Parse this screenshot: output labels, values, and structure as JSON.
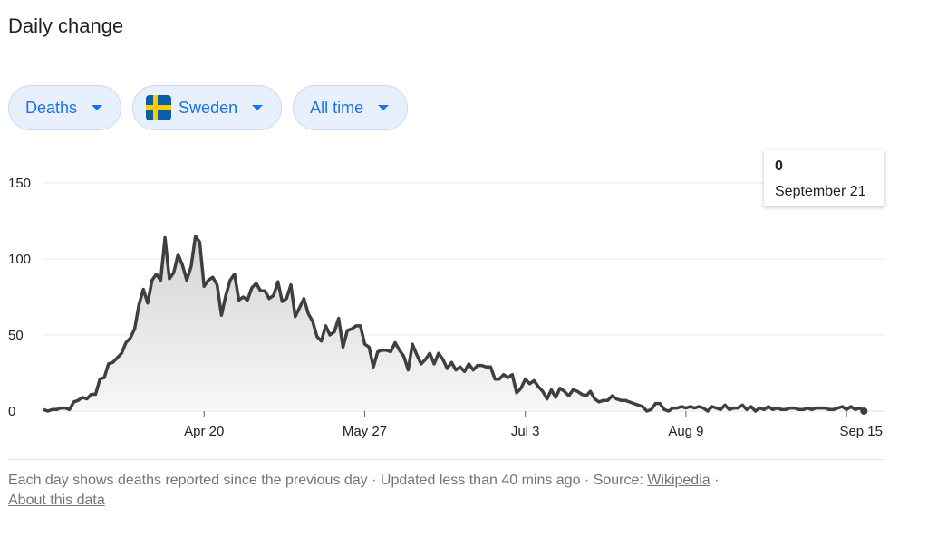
{
  "header": {
    "title": "Daily change"
  },
  "filters": [
    {
      "label": "Deaths",
      "icon": "caret-down-icon"
    },
    {
      "label": "Sweden",
      "icon": "sweden-flag-icon"
    },
    {
      "label": "All time",
      "icon": "caret-down-icon"
    }
  ],
  "colors": {
    "chip_text": "#1a73e8",
    "chip_bg": "#e8f0fe",
    "line": "#3c4043",
    "area_top": "#d9d9d9"
  },
  "tooltip": {
    "value": "0",
    "date": "September 21"
  },
  "footer": {
    "text": "Each day shows deaths reported since the previous day · Updated less than 40 mins ago  ·  Source: ",
    "source_link": "Wikipedia",
    "separator": " · ",
    "about_link": "About this data"
  },
  "chart_data": {
    "type": "area",
    "title": "",
    "xlabel": "",
    "ylabel": "",
    "ylim": [
      0,
      150
    ],
    "yticks": [
      0,
      50,
      100,
      150
    ],
    "xtick_labels": [
      "Apr 20",
      "May 27",
      "Jul 3",
      "Aug 9",
      "Sep 15"
    ],
    "xtick_day_index": [
      37,
      74,
      111,
      148,
      185
    ],
    "grid": "horizontal",
    "series": [
      {
        "values": [
          1,
          0,
          1,
          1,
          2,
          2,
          1,
          6,
          7,
          9,
          8,
          11,
          11,
          21,
          22,
          31,
          32,
          35,
          38,
          45,
          48,
          54,
          70,
          80,
          71,
          86,
          90,
          86,
          114,
          87,
          91,
          103,
          96,
          86,
          95,
          115,
          111,
          82,
          86,
          88,
          83,
          63,
          76,
          86,
          90,
          73,
          75,
          73,
          81,
          84,
          79,
          79,
          74,
          76,
          85,
          72,
          74,
          83,
          62,
          68,
          74,
          64,
          59,
          49,
          46,
          56,
          50,
          52,
          61,
          42,
          53,
          54,
          56,
          56,
          44,
          42,
          29,
          39,
          40,
          40,
          39,
          45,
          40,
          36,
          27,
          44,
          37,
          31,
          34,
          38,
          31,
          38,
          34,
          28,
          32,
          27,
          29,
          26,
          31,
          27,
          30,
          30,
          29,
          29,
          21,
          21,
          24,
          22,
          24,
          12,
          15,
          21,
          18,
          20,
          16,
          13,
          8,
          14,
          9,
          15,
          13,
          10,
          14,
          13,
          11,
          10,
          13,
          8,
          6,
          7,
          7,
          10,
          8,
          7,
          7,
          6,
          5,
          4,
          3,
          0,
          1,
          5,
          5,
          1,
          0,
          2,
          2,
          3,
          2,
          3,
          2,
          3,
          2,
          0,
          3,
          2,
          1,
          4,
          1,
          2,
          2,
          4,
          1,
          3,
          0,
          2,
          1,
          3,
          1,
          2,
          1,
          1,
          2,
          2,
          1,
          1,
          2,
          1,
          2,
          2,
          2,
          1,
          1,
          2,
          3,
          1,
          3,
          1,
          2,
          0
        ]
      }
    ]
  }
}
